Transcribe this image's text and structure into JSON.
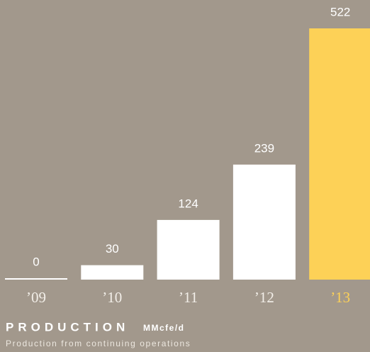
{
  "chart_data": {
    "type": "bar",
    "title": "PRODUCTION",
    "unit": "MMcfe/d",
    "subtitle": "Production from continuing operations",
    "categories": [
      "’09",
      "’10",
      "’11",
      "’12",
      "’13"
    ],
    "values": [
      0,
      30,
      124,
      239,
      522
    ],
    "colors": [
      "#ffffff",
      "#ffffff",
      "#ffffff",
      "#ffffff",
      "#fdd157"
    ]
  }
}
